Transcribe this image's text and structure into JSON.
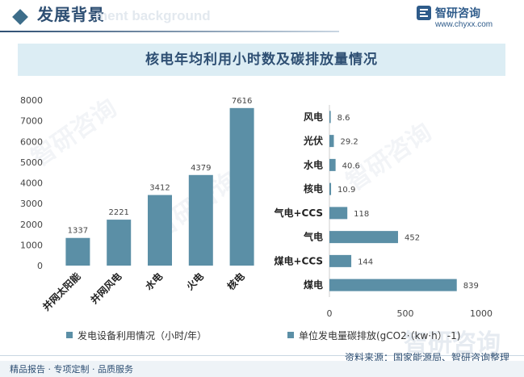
{
  "header": {
    "title": "发展背景",
    "ghost_text": "ment background",
    "brand_name": "智研咨询",
    "brand_url": "www.chyxx.com"
  },
  "chart_title": "核电年均利用小时数及碳排放量情况",
  "watermark_text": "智研咨询",
  "chart_data": [
    {
      "type": "bar",
      "categories": [
        "并网太阳能",
        "并网风电",
        "水电",
        "火电",
        "核电"
      ],
      "values": [
        1337,
        2221,
        3412,
        4379,
        7616
      ],
      "ylim": [
        0,
        8000
      ],
      "yticks": [
        0,
        1000,
        2000,
        3000,
        4000,
        5000,
        6000,
        7000,
        8000
      ],
      "color": "#5b8fa6",
      "legend": "发电设备利用情况（小时/年）"
    },
    {
      "type": "bar",
      "orientation": "horizontal",
      "categories": [
        "风电",
        "光伏",
        "水电",
        "核电",
        "气电+CCS",
        "气电",
        "煤电+CCS",
        "煤电"
      ],
      "values": [
        8.6,
        29.2,
        40.6,
        10.9,
        118,
        452,
        144,
        839
      ],
      "xlim": [
        0,
        1000
      ],
      "xticks": [
        0,
        500,
        1000
      ],
      "color": "#5b8fa6",
      "legend": "单位发电量碳排放(gCO2·（kw·h）-1)"
    }
  ],
  "source": "资料来源：国家能源局、智研咨询整理",
  "footer": "精品报告 · 专项定制 · 品质服务"
}
